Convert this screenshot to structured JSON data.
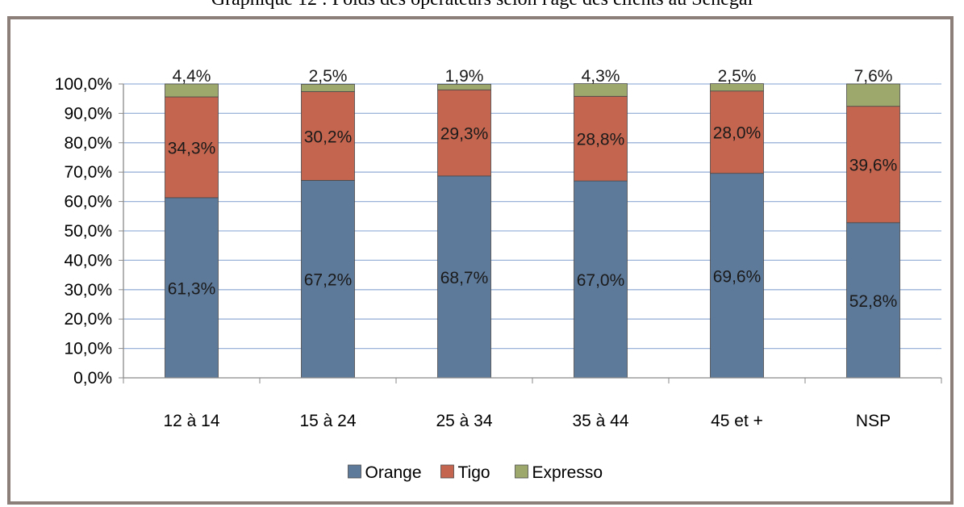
{
  "caption": "Graphique 12 : Poids des opérateurs selon l'âge des clients au Sénégal",
  "chart_data": {
    "type": "bar",
    "stacked": true,
    "categories": [
      "12 à 14",
      "15 à 24",
      "25 à 34",
      "35 à 44",
      "45 et +",
      "NSP"
    ],
    "series": [
      {
        "name": "Orange",
        "color": "#5e7a9b",
        "values": [
          61.3,
          67.2,
          68.7,
          67.0,
          69.6,
          52.8
        ],
        "labels": [
          "61,3%",
          "67,2%",
          "68,7%",
          "67,0%",
          "69,6%",
          "52,8%"
        ]
      },
      {
        "name": "Tigo",
        "color": "#c4654f",
        "values": [
          34.3,
          30.2,
          29.3,
          28.8,
          28.0,
          39.6
        ],
        "labels": [
          "34,3%",
          "30,2%",
          "29,3%",
          "28,8%",
          "28,0%",
          "39,6%"
        ]
      },
      {
        "name": "Expresso",
        "color": "#9ca86c",
        "values": [
          4.4,
          2.5,
          1.9,
          4.3,
          2.5,
          7.6
        ],
        "labels": [
          "4,4%",
          "2,5%",
          "1,9%",
          "4,3%",
          "2,5%",
          "7,6%"
        ]
      }
    ],
    "yticks": [
      "0,0%",
      "10,0%",
      "20,0%",
      "30,0%",
      "40,0%",
      "50,0%",
      "60,0%",
      "70,0%",
      "80,0%",
      "90,0%",
      "100,0%"
    ],
    "ylim": [
      0,
      100
    ],
    "grid": true,
    "grid_color": "#9bb3d9",
    "legend_position": "bottom"
  }
}
